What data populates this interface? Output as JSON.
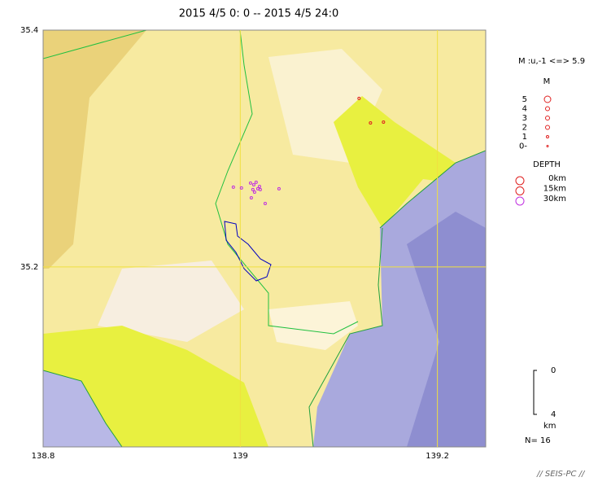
{
  "map": {
    "title": "2015 4/5 0: 0 -- 2015 4/5 24:0",
    "lonlim": [
      138.8,
      139.249
    ],
    "latlim": [
      35.048,
      35.4
    ],
    "xticks": [
      138.8,
      139,
      139.2
    ],
    "yticks": [
      35.2,
      35.4
    ],
    "events": [
      {
        "lon": 139.1205,
        "lat": 35.3423
      },
      {
        "lon": 139.1321,
        "lat": 35.3216
      },
      {
        "lon": 139.1453,
        "lat": 35.3223
      },
      {
        "lon": 138.993,
        "lat": 35.2674
      },
      {
        "lon": 139.0012,
        "lat": 35.2667
      },
      {
        "lon": 139.0104,
        "lat": 35.2708
      },
      {
        "lon": 139.0137,
        "lat": 35.2694
      },
      {
        "lon": 139.0161,
        "lat": 35.2715
      },
      {
        "lon": 139.0178,
        "lat": 35.266
      },
      {
        "lon": 139.0203,
        "lat": 35.2653
      },
      {
        "lon": 139.0145,
        "lat": 35.2632
      },
      {
        "lon": 139.0112,
        "lat": 35.2584
      },
      {
        "lon": 139.0253,
        "lat": 35.2536
      },
      {
        "lon": 139.0393,
        "lat": 35.266
      },
      {
        "lon": 139.0195,
        "lat": 35.268
      },
      {
        "lon": 139.0128,
        "lat": 35.2653
      }
    ],
    "legend": {
      "range": "M :u,-1 <=> 5.9",
      "mag_title": "M",
      "mags": [
        "5",
        "4",
        "3",
        "2",
        "1",
        "0-"
      ],
      "depth_title": "DEPTH",
      "depths": [
        {
          "label": "0km",
          "color": "#e02020"
        },
        {
          "label": "15km",
          "color": "#e02020"
        },
        {
          "label": "30km",
          "color": "#c030e0"
        }
      ],
      "scale": [
        "0",
        "4"
      ],
      "scale_unit": "km",
      "count": "N= 16"
    },
    "footer": "// SEIS-PC //"
  }
}
